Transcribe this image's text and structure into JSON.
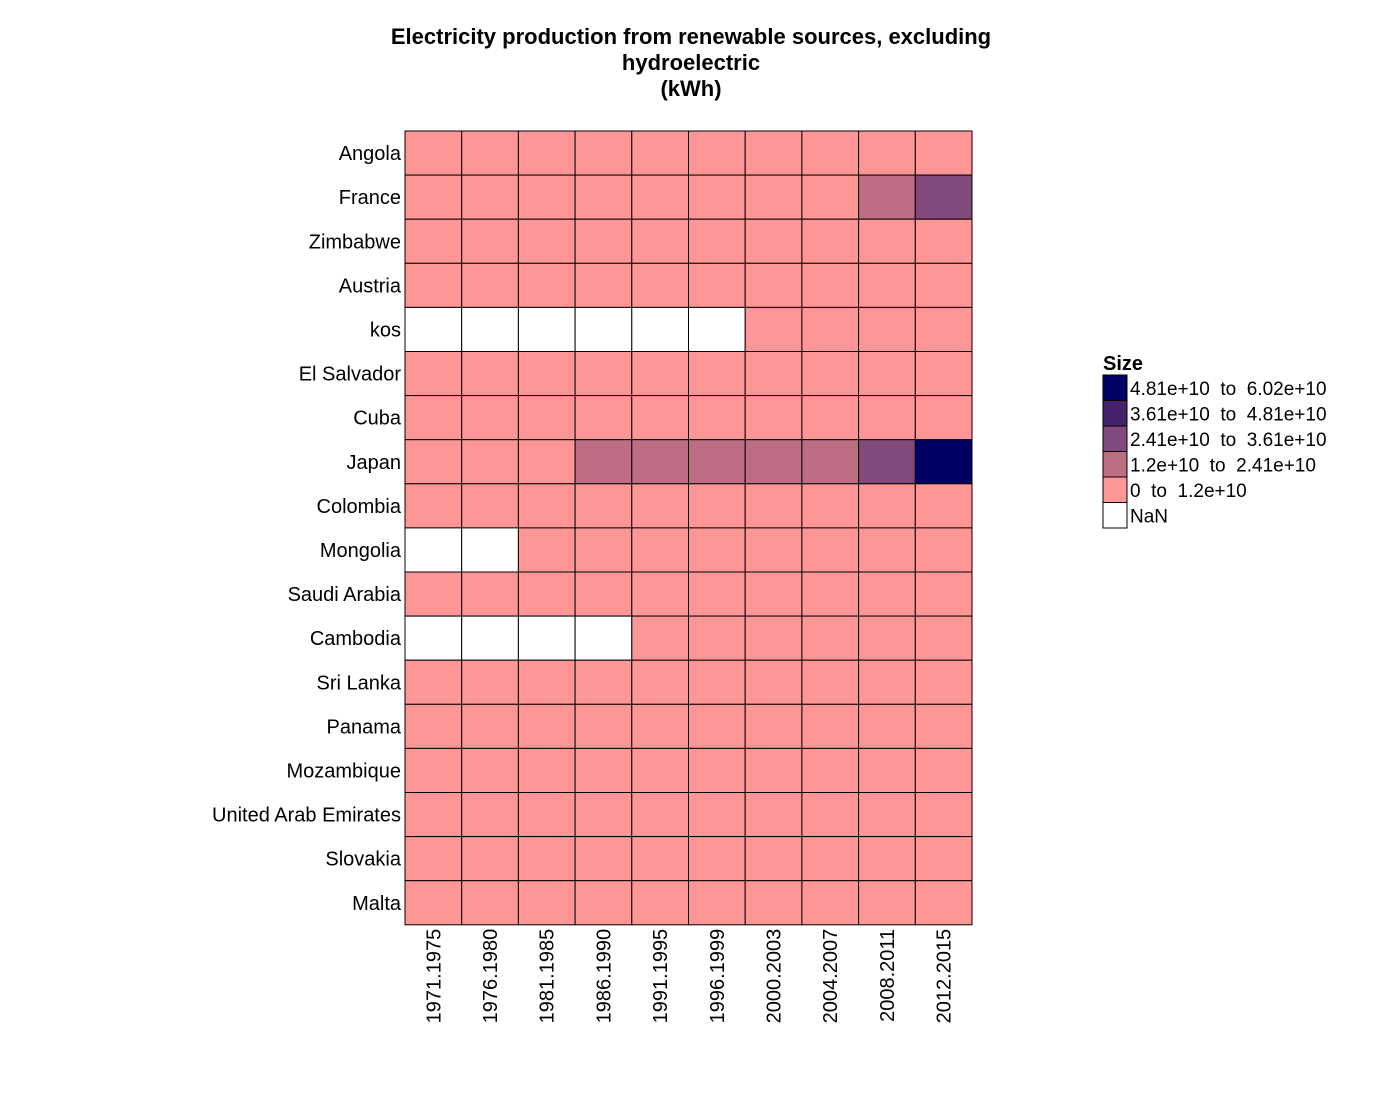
{
  "chart_data": {
    "type": "heatmap",
    "title_lines": [
      "Electricity production from renewable sources, excluding",
      "hydroelectric",
      "(kWh)"
    ],
    "rows": [
      "Angola",
      "France",
      "Zimbabwe",
      "Austria",
      "kos",
      "El Salvador",
      "Cuba",
      "Japan",
      "Colombia",
      "Mongolia",
      "Saudi Arabia",
      "Cambodia",
      "Sri Lanka",
      "Panama",
      "Mozambique",
      "United Arab Emirates",
      "Slovakia",
      "Malta"
    ],
    "columns": [
      "1971.1975",
      "1976.1980",
      "1981.1985",
      "1986.1990",
      "1991.1995",
      "1996.1999",
      "2000.2003",
      "2004.2007",
      "2008.2011",
      "2012.2015"
    ],
    "bin_index_matrix": [
      [
        1,
        1,
        1,
        1,
        1,
        1,
        1,
        1,
        1,
        1
      ],
      [
        1,
        1,
        1,
        1,
        1,
        1,
        1,
        1,
        2,
        3
      ],
      [
        1,
        1,
        1,
        1,
        1,
        1,
        1,
        1,
        1,
        1
      ],
      [
        1,
        1,
        1,
        1,
        1,
        1,
        1,
        1,
        1,
        1
      ],
      [
        0,
        0,
        0,
        0,
        0,
        0,
        1,
        1,
        1,
        1
      ],
      [
        1,
        1,
        1,
        1,
        1,
        1,
        1,
        1,
        1,
        1
      ],
      [
        1,
        1,
        1,
        1,
        1,
        1,
        1,
        1,
        1,
        1
      ],
      [
        1,
        1,
        1,
        2,
        2,
        2,
        2,
        2,
        3,
        5
      ],
      [
        1,
        1,
        1,
        1,
        1,
        1,
        1,
        1,
        1,
        1
      ],
      [
        0,
        0,
        1,
        1,
        1,
        1,
        1,
        1,
        1,
        1
      ],
      [
        1,
        1,
        1,
        1,
        1,
        1,
        1,
        1,
        1,
        1
      ],
      [
        0,
        0,
        0,
        0,
        1,
        1,
        1,
        1,
        1,
        1
      ],
      [
        1,
        1,
        1,
        1,
        1,
        1,
        1,
        1,
        1,
        1
      ],
      [
        1,
        1,
        1,
        1,
        1,
        1,
        1,
        1,
        1,
        1
      ],
      [
        1,
        1,
        1,
        1,
        1,
        1,
        1,
        1,
        1,
        1
      ],
      [
        1,
        1,
        1,
        1,
        1,
        1,
        1,
        1,
        1,
        1
      ],
      [
        1,
        1,
        1,
        1,
        1,
        1,
        1,
        1,
        1,
        1
      ],
      [
        1,
        1,
        1,
        1,
        1,
        1,
        1,
        1,
        1,
        1
      ]
    ],
    "legend": {
      "title": "Size",
      "position": "right",
      "bins": [
        {
          "label": "NaN",
          "color": "#ffffff"
        },
        {
          "label": "0  to  1.2e+10",
          "color": "#ff9696"
        },
        {
          "label": "1.2e+10  to  2.41e+10",
          "color": "#be6e82"
        },
        {
          "label": "2.41e+10  to  3.61e+10",
          "color": "#82497c"
        },
        {
          "label": "3.61e+10  to  4.81e+10",
          "color": "#45216e"
        },
        {
          "label": "4.81e+10  to  6.02e+10",
          "color": "#000064"
        }
      ],
      "display_order": [
        5,
        4,
        3,
        2,
        1,
        0
      ]
    },
    "cell_border_color": "#000000"
  }
}
